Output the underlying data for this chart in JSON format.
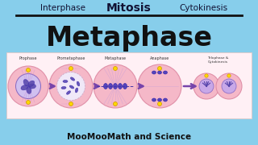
{
  "bg_color": "#87CEEB",
  "title_top_left": "Interphase",
  "title_top_center": "Mitosis",
  "title_top_right": "Cytokinesis",
  "title_main": "Metaphase",
  "bottom_text": "MooMooMath and Science",
  "stages": [
    "Prophase",
    "Prometaphase",
    "Metaphase",
    "Anaphase",
    "Telophase &\nCytokinesis"
  ],
  "cell_color": "#F5B8C8",
  "cell_edge_color": "#E090A8",
  "arrow_color": "#7744AA",
  "panel_bg": "#FFF0F5",
  "panel_edge": "#DDCCCC",
  "line_color": "#111111",
  "top_header_color": "#111133",
  "main_title_color": "#111111",
  "chrom_color": "#6655BB",
  "centrosome_color": "#FFD700",
  "centrosome_edge": "#CC9900"
}
